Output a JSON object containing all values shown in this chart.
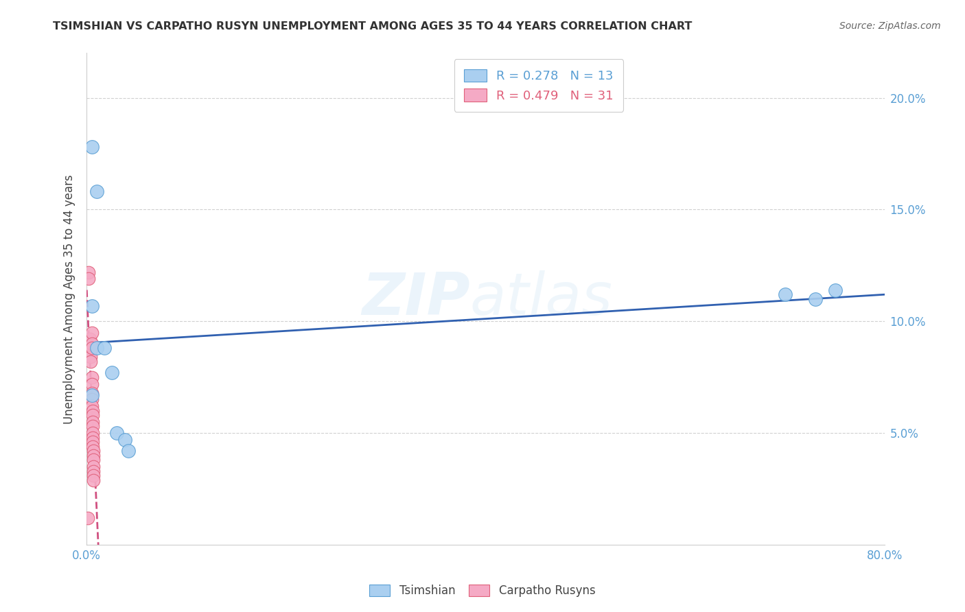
{
  "title": "TSIMSHIAN VS CARPATHO RUSYN UNEMPLOYMENT AMONG AGES 35 TO 44 YEARS CORRELATION CHART",
  "source": "Source: ZipAtlas.com",
  "ylabel": "Unemployment Among Ages 35 to 44 years",
  "xlim": [
    0,
    0.8
  ],
  "ylim": [
    0,
    0.22
  ],
  "yticks": [
    0.05,
    0.1,
    0.15,
    0.2
  ],
  "ytick_labels": [
    "5.0%",
    "10.0%",
    "15.0%",
    "20.0%"
  ],
  "xticks": [
    0.0,
    0.1,
    0.2,
    0.3,
    0.4,
    0.5,
    0.6,
    0.7,
    0.8
  ],
  "xtick_labels": [
    "0.0%",
    "",
    "",
    "",
    "",
    "",
    "",
    "",
    "80.0%"
  ],
  "tsimshian_x": [
    0.005,
    0.01,
    0.005,
    0.01,
    0.005,
    0.018,
    0.025,
    0.03,
    0.038,
    0.042,
    0.7,
    0.73,
    0.75
  ],
  "tsimshian_y": [
    0.178,
    0.158,
    0.107,
    0.088,
    0.067,
    0.088,
    0.077,
    0.05,
    0.047,
    0.042,
    0.112,
    0.11,
    0.114
  ],
  "carpatho_x": [
    0.002,
    0.002,
    0.003,
    0.003,
    0.004,
    0.004,
    0.004,
    0.005,
    0.005,
    0.005,
    0.005,
    0.005,
    0.005,
    0.005,
    0.005,
    0.006,
    0.006,
    0.006,
    0.006,
    0.006,
    0.006,
    0.006,
    0.006,
    0.007,
    0.007,
    0.007,
    0.007,
    0.007,
    0.007,
    0.007,
    0.001
  ],
  "carpatho_y": [
    0.122,
    0.119,
    0.092,
    0.087,
    0.087,
    0.084,
    0.082,
    0.095,
    0.09,
    0.088,
    0.075,
    0.072,
    0.068,
    0.065,
    0.062,
    0.06,
    0.058,
    0.055,
    0.053,
    0.05,
    0.048,
    0.046,
    0.044,
    0.042,
    0.04,
    0.038,
    0.035,
    0.033,
    0.031,
    0.029,
    0.012
  ],
  "tsimshian_color": "#aacff0",
  "tsimshian_edge_color": "#5a9fd4",
  "carpatho_color": "#f5aac5",
  "carpatho_edge_color": "#e0607a",
  "blue_line_color": "#3060b0",
  "pink_line_color": "#d05080",
  "legend_r_tsimshian": "R = 0.278",
  "legend_n_tsimshian": "N = 13",
  "legend_r_carpatho": "R = 0.479",
  "legend_n_carpatho": "N = 31",
  "watermark_line1": "ZIP",
  "watermark_line2": "atlas",
  "background_color": "#ffffff",
  "grid_color": "#d0d0d0",
  "tick_color": "#5a9fd4",
  "title_color": "#333333",
  "ylabel_color": "#444444",
  "source_color": "#666666"
}
